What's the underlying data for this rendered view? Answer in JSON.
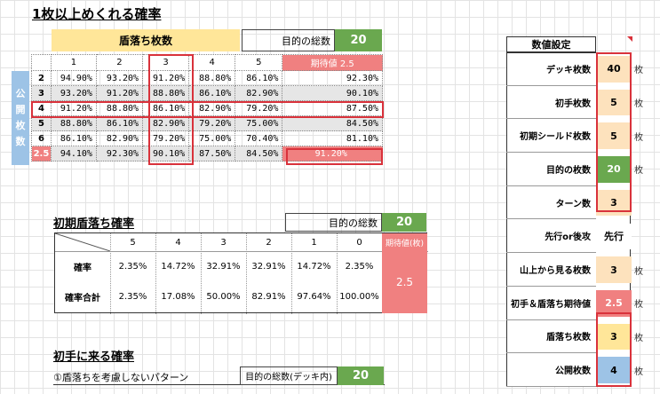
{
  "section1": {
    "title": "1枚以上めくれる確率",
    "header_label": "盾落ち枚数",
    "target_total_label": "目的の総数",
    "target_total_value": "20",
    "columns": [
      "1",
      "2",
      "3",
      "4",
      "5"
    ],
    "expected_label": "期待値 2.5",
    "side_label_chars": [
      "公",
      "開",
      "枚",
      "数"
    ],
    "rows": [
      {
        "label": "2",
        "values": [
          "94.90%",
          "93.20%",
          "91.20%",
          "88.80%",
          "86.10%",
          "92.30%"
        ]
      },
      {
        "label": "3",
        "values": [
          "93.20%",
          "91.20%",
          "88.80%",
          "86.10%",
          "82.90%",
          "90.10%"
        ]
      },
      {
        "label": "4",
        "values": [
          "91.20%",
          "88.80%",
          "86.10%",
          "82.90%",
          "79.20%",
          "87.50%"
        ]
      },
      {
        "label": "5",
        "values": [
          "88.80%",
          "86.10%",
          "82.90%",
          "79.20%",
          "75.00%",
          "84.50%"
        ]
      },
      {
        "label": "6",
        "values": [
          "86.10%",
          "82.90%",
          "79.20%",
          "75.00%",
          "70.40%",
          "81.10%"
        ]
      },
      {
        "label": "2.5",
        "values": [
          "94.10%",
          "92.30%",
          "90.10%",
          "87.50%",
          "84.50%",
          "91.20%"
        ]
      }
    ]
  },
  "section2": {
    "title": "初期盾落ち確率",
    "target_total_label": "目的の総数",
    "target_total_value": "20",
    "columns": [
      "5",
      "4",
      "3",
      "2",
      "1",
      "0"
    ],
    "expected_label": "期待値(枚)",
    "expected_value": "2.5",
    "rows": [
      {
        "label": "確率",
        "values": [
          "2.35%",
          "14.72%",
          "32.91%",
          "32.91%",
          "14.72%",
          "2.35%"
        ]
      },
      {
        "label": "確率合計",
        "values": [
          "2.35%",
          "17.08%",
          "50.00%",
          "82.91%",
          "97.64%",
          "100.00%"
        ]
      }
    ]
  },
  "section3": {
    "title": "初手に来る確率",
    "subtitle": "①盾落ちを考慮しないパターン",
    "target_total_label": "目的の総数(デッキ内)",
    "target_total_value": "20"
  },
  "settings": {
    "header": "数値設定",
    "rows": [
      {
        "label": "デッキ枚数",
        "value": "40",
        "unit": "枚"
      },
      {
        "label": "初手枚数",
        "value": "5",
        "unit": "枚"
      },
      {
        "label": "初期シールド枚数",
        "value": "5",
        "unit": "枚"
      },
      {
        "label": "目的の枚数",
        "value": "20",
        "unit": "枚"
      },
      {
        "label": "ターン数",
        "value": "3",
        "unit": ""
      },
      {
        "label": "先行or後攻",
        "value": "先行",
        "unit": ""
      },
      {
        "label": "山上から見る枚数",
        "value": "3",
        "unit": "枚"
      },
      {
        "label": "初手＆盾落ち期待値",
        "value": "2.5",
        "unit": "枚"
      },
      {
        "label": "盾落ち枚数",
        "value": "3",
        "unit": "枚"
      },
      {
        "label": "公開枚数",
        "value": "4",
        "unit": "枚"
      }
    ],
    "colors": {
      "peach": "#fde2bd",
      "green": "#6aa84f",
      "salmon": "#f08080",
      "yellow": "#ffe699",
      "blue": "#9dc3e6",
      "red_border": "#d9323b"
    }
  }
}
